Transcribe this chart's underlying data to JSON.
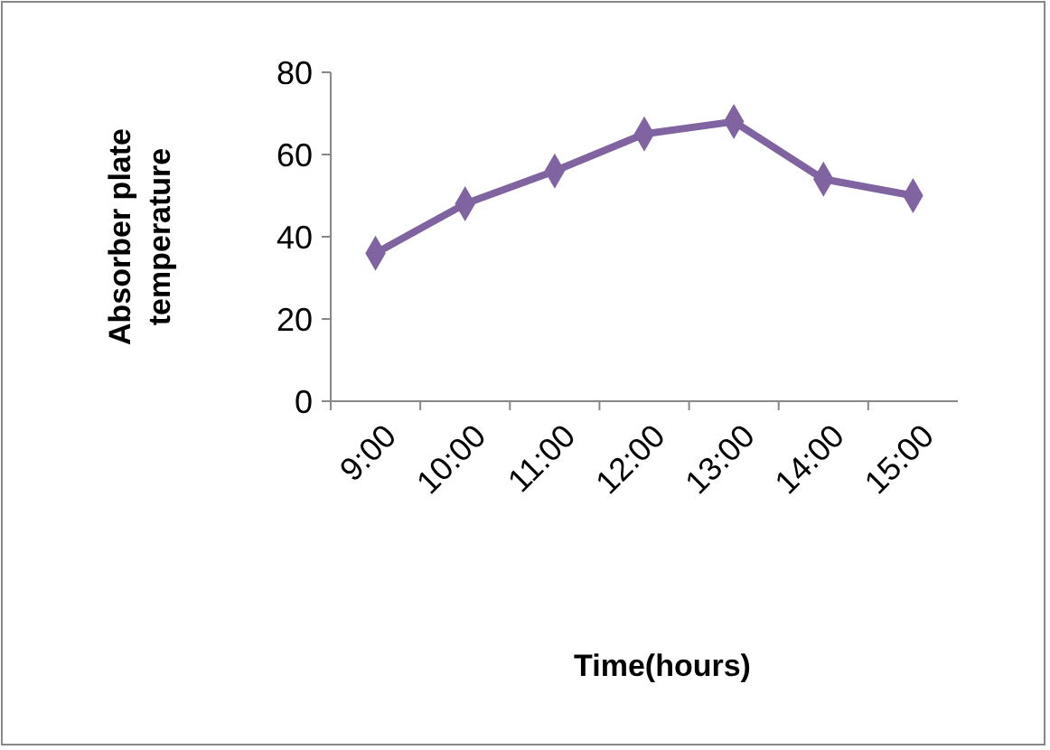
{
  "chart_data": {
    "type": "line",
    "xlabel": "Time(hours)",
    "ylabel": "Absorber plate temperature",
    "categories": [
      "9:00",
      "10:00",
      "11:00",
      "12:00",
      "13:00",
      "14:00",
      "15:00"
    ],
    "series": [
      {
        "color": "#8064a2",
        "values": [
          36,
          48,
          56,
          65,
          68,
          54,
          50
        ]
      }
    ],
    "ylim": [
      0,
      80
    ],
    "yticks": [
      0,
      20,
      40,
      60,
      80
    ],
    "grid": false,
    "marker": "diamond",
    "line_style": "solid"
  }
}
